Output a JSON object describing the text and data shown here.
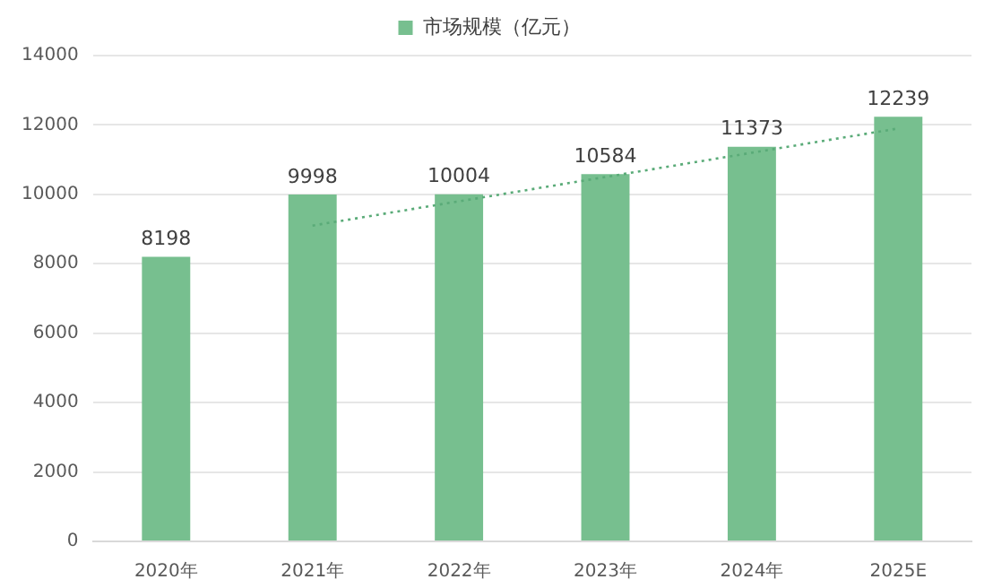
{
  "chart_data": {
    "type": "bar",
    "categories": [
      "2020年",
      "2021年",
      "2022年",
      "2023年",
      "2024年",
      "2025E"
    ],
    "series": [
      {
        "name": "市场规模（亿元）",
        "color": "#77bf8f",
        "values": [
          8198,
          9998,
          10004,
          10584,
          11373,
          12239
        ],
        "value_labels": [
          "8198",
          "9998",
          "10004",
          "10584",
          "11373",
          "12239"
        ]
      },
      {
        "type": "line",
        "color": "#5aab78",
        "line_style": "dotted",
        "marker": "none",
        "x": [
          "2021年",
          "2022年",
          "2023年",
          "2024年",
          "2025E"
        ],
        "values": [
          9100,
          9800,
          10500,
          11200,
          11900
        ]
      }
    ],
    "ylim": [
      0,
      14000
    ],
    "yticks": [
      0,
      2000,
      4000,
      6000,
      8000,
      10000,
      12000,
      14000
    ],
    "grid": "y",
    "legend": "top"
  }
}
